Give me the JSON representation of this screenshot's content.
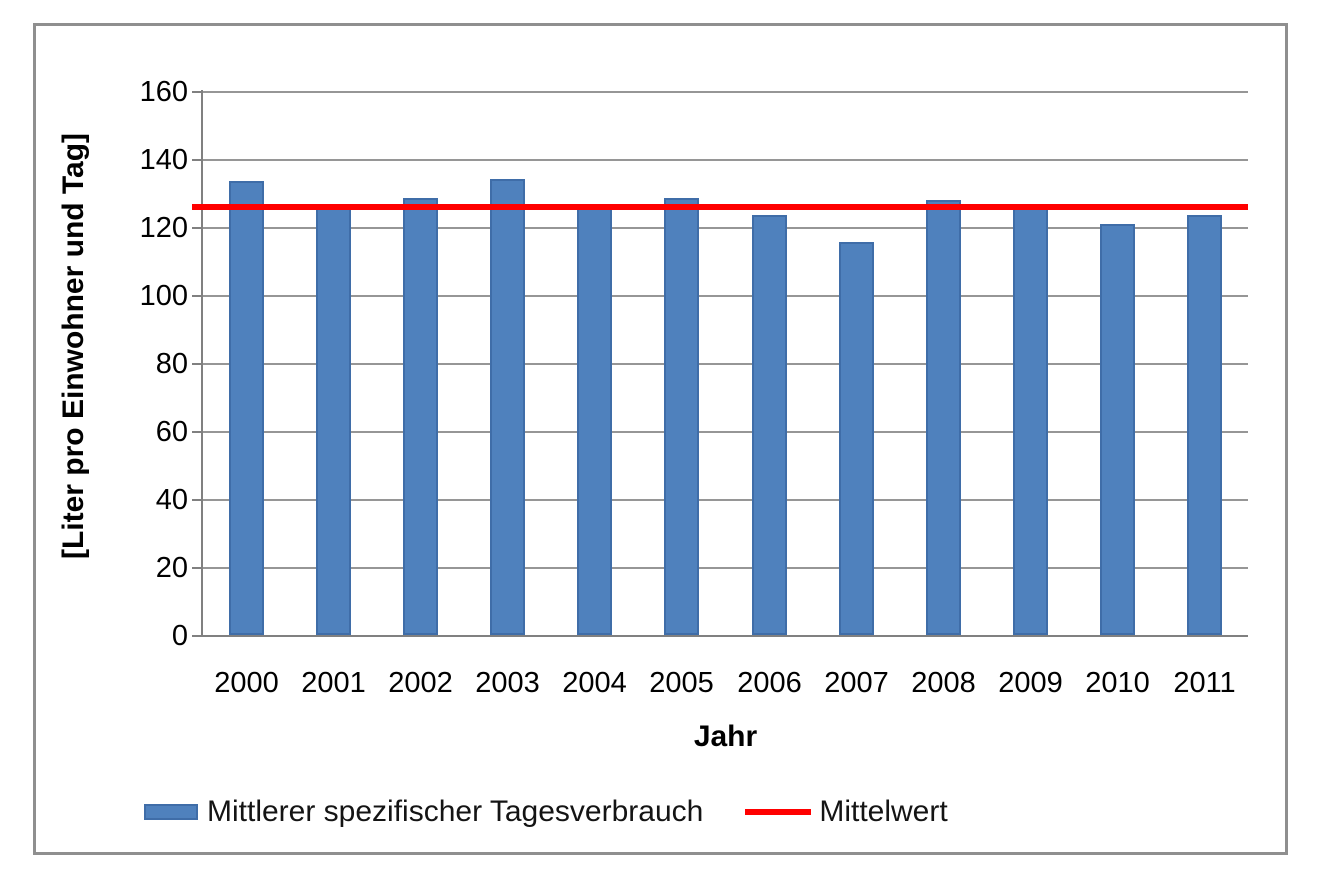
{
  "chart_data": {
    "type": "bar",
    "title": "",
    "categories": [
      "2000",
      "2001",
      "2002",
      "2003",
      "2004",
      "2005",
      "2006",
      "2007",
      "2008",
      "2009",
      "2010",
      "2011"
    ],
    "series": [
      {
        "name": "Mittlerer spezifischer Tagesverbrauch",
        "type": "bar",
        "color": "#4f81bd",
        "border_color": "#3f6da8",
        "values": [
          133.5,
          125.5,
          128.5,
          134,
          125.5,
          128.5,
          123.5,
          115.5,
          128,
          125.5,
          121,
          123.5
        ]
      },
      {
        "name": "Mittelwert",
        "type": "line",
        "color": "#ff0000",
        "value": 126
      }
    ],
    "xlabel": "Jahr",
    "ylabel": "[Liter pro Einwohner und Tag]",
    "ylim": [
      0,
      160
    ],
    "ytick_step": 20,
    "yticks": [
      "0",
      "20",
      "40",
      "60",
      "80",
      "100",
      "120",
      "140",
      "160"
    ],
    "grid": true,
    "gridline_color": "#969696",
    "axis_color": "#808080",
    "frame_border_color": "#8f8f8f",
    "legend_position": "bottom"
  }
}
